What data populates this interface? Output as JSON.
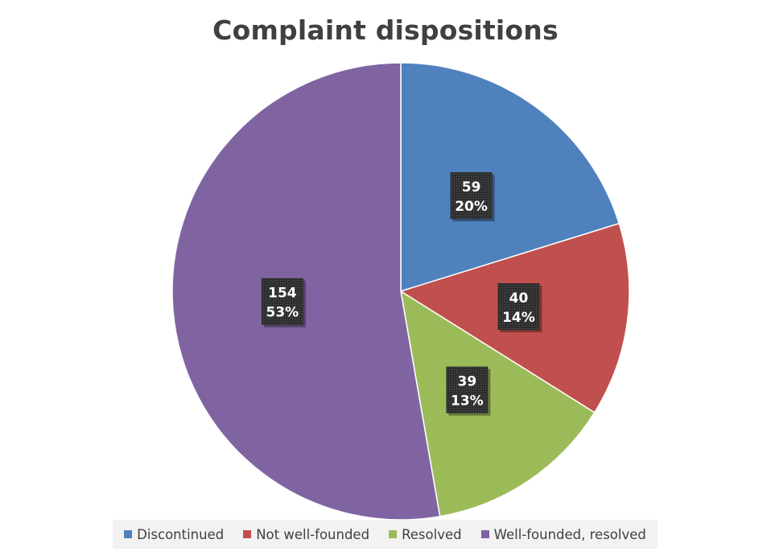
{
  "chart_data": {
    "type": "pie",
    "title": "Complaint dispositions",
    "categories": [
      "Discontinued",
      "Not well-founded",
      "Resolved",
      "Well-founded, resolved"
    ],
    "values": [
      59,
      40,
      39,
      154
    ],
    "percent_labels": [
      "20%",
      "14%",
      "13%",
      "53%"
    ],
    "colors": [
      "#4f81bd",
      "#c0504d",
      "#9bbb59",
      "#8064a2"
    ],
    "start_angle_deg": 0,
    "direction": "clockwise",
    "legend_position": "bottom",
    "data_labels": "value and percentage"
  }
}
